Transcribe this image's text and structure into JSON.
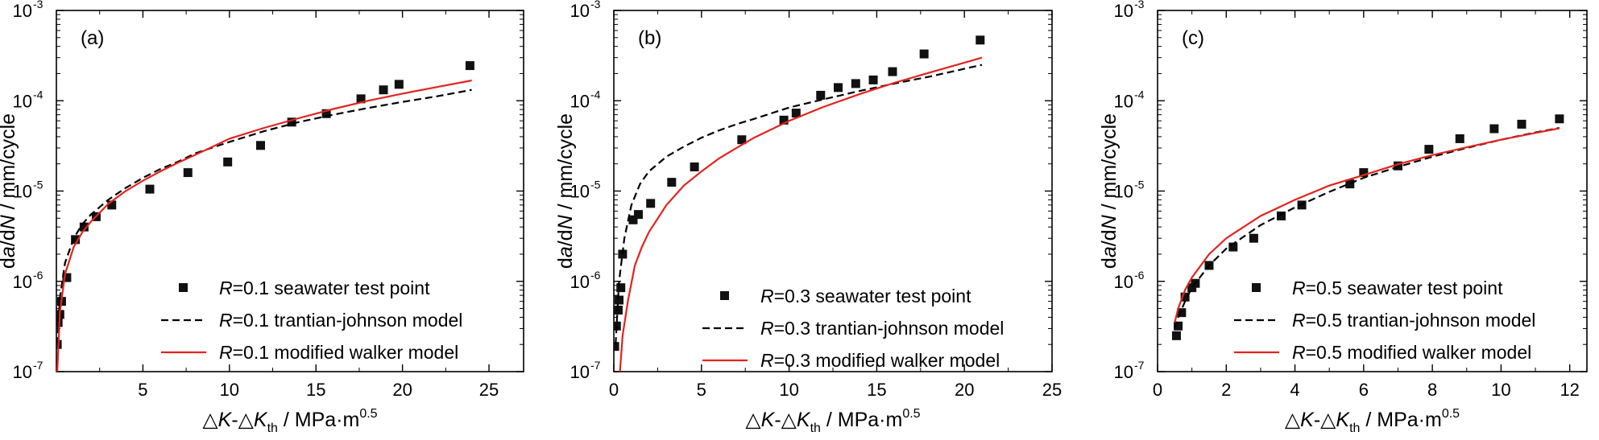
{
  "chart_data": [
    {
      "type": "scatter",
      "panel_label": "(a)",
      "xlim": [
        0,
        27
      ],
      "ylim": [
        1e-07,
        0.001
      ],
      "yscale": "log",
      "xticks": [
        "5",
        "10",
        "15",
        "20",
        "25"
      ],
      "xlabel": "△K-△Kth / MPa·m0.5",
      "ylabel": "da/dN / mm/cycle",
      "legend": [
        "R=0.1 seawater test point",
        "R=0.1 trantian-johnson model",
        "R=0.1 modified walker model"
      ],
      "series": [
        {
          "name": "R=0.1 seawater test point",
          "kind": "points",
          "color": "#111111",
          "x": [
            0.05,
            0.1,
            0.2,
            0.3,
            0.6,
            1.1,
            1.6,
            2.3,
            3.2,
            5.4,
            7.6,
            9.9,
            11.8,
            13.6,
            15.6,
            17.6,
            18.9,
            19.8,
            23.9
          ],
          "y": [
            2e-07,
            3.5e-07,
            4.3e-07,
            6e-07,
            1.1e-06,
            2.9e-06,
            4e-06,
            5.2e-06,
            7e-06,
            1.05e-05,
            1.6e-05,
            2.1e-05,
            3.2e-05,
            5.8e-05,
            7.2e-05,
            0.000105,
            0.000132,
            0.000152,
            0.000245
          ]
        },
        {
          "name": "R=0.1 trantian-johnson model",
          "kind": "dashed",
          "color": "#000000",
          "x": [
            0.05,
            0.2,
            0.5,
            1.0,
            1.5,
            2.0,
            3.0,
            4.0,
            5.0,
            6.0,
            7.0,
            8.0,
            10,
            12,
            14,
            16,
            18,
            20,
            22,
            24
          ],
          "y": [
            2e-07,
            6.5e-07,
            1.6e-06,
            3e-06,
            4.3e-06,
            5.5e-06,
            8e-06,
            1.08e-05,
            1.4e-05,
            1.75e-05,
            2.1e-05,
            2.6e-05,
            3.5e-05,
            4.6e-05,
            5.8e-05,
            7e-05,
            8.3e-05,
            9.7e-05,
            0.000112,
            0.000132
          ]
        },
        {
          "name": "R=0.1 modified walker model",
          "kind": "solid",
          "color": "#e3231e",
          "x": [
            0.05,
            0.2,
            0.5,
            1.0,
            1.5,
            2.0,
            3.0,
            4.0,
            5.0,
            6.0,
            7.0,
            8.0,
            10,
            12,
            14,
            16,
            18,
            20,
            22,
            24
          ],
          "y": [
            1e-07,
            4.5e-07,
            1.2e-06,
            2.4e-06,
            3.5e-06,
            4.6e-06,
            7.2e-06,
            1e-05,
            1.3e-05,
            1.65e-05,
            2.05e-05,
            2.5e-05,
            3.8e-05,
            5e-05,
            6.4e-05,
            8.1e-05,
            0.0001,
            0.00012,
            0.000142,
            0.000168
          ]
        }
      ]
    },
    {
      "type": "scatter",
      "panel_label": "(b)",
      "xlim": [
        0,
        25
      ],
      "ylim": [
        1e-07,
        0.001
      ],
      "yscale": "log",
      "xticks": [
        "0",
        "5",
        "10",
        "15",
        "20",
        "25"
      ],
      "xlabel": "△K-△Kth / MPa·m0.5",
      "ylabel": "da/dN / mm/cycle",
      "legend": [
        "R=0.3 seawater test point",
        "R=0.3 trantian-johnson model",
        "R=0.3 modified walker model"
      ],
      "series": [
        {
          "name": "R=0.3 seawater test point",
          "kind": "points",
          "color": "#111111",
          "x": [
            0.05,
            0.15,
            0.25,
            0.3,
            0.4,
            0.5,
            1.1,
            1.4,
            2.1,
            3.3,
            4.6,
            7.3,
            9.7,
            10.4,
            11.8,
            12.8,
            13.8,
            14.8,
            15.9,
            17.7,
            20.9
          ],
          "y": [
            1.9e-07,
            3.2e-07,
            4.8e-07,
            6.2e-07,
            8.5e-07,
            2e-06,
            4.8e-06,
            5.5e-06,
            7.3e-06,
            1.25e-05,
            1.85e-05,
            3.7e-05,
            6.1e-05,
            7.3e-05,
            0.000115,
            0.00014,
            0.000155,
            0.00017,
            0.00021,
            0.00033,
            0.00047
          ]
        },
        {
          "name": "R=0.3 trantian-johnson model",
          "kind": "dashed",
          "color": "#000000",
          "x": [
            0.1,
            0.3,
            0.6,
            1.0,
            1.5,
            2.0,
            3.0,
            4.0,
            5.0,
            6.0,
            7.0,
            8.0,
            10,
            12,
            14,
            16,
            18,
            21
          ],
          "y": [
            2e-07,
            1e-06,
            3e-06,
            7e-06,
            1.2e-05,
            1.65e-05,
            2.4e-05,
            3.1e-05,
            3.9e-05,
            4.7e-05,
            5.5e-05,
            6.3e-05,
            8.4e-05,
            0.000104,
            0.000128,
            0.000155,
            0.000185,
            0.00025
          ]
        },
        {
          "name": "R=0.3 modified walker model",
          "kind": "solid",
          "color": "#e3231e",
          "x": [
            0.35,
            0.5,
            0.8,
            1.2,
            1.6,
            2.0,
            3.0,
            4.0,
            5.0,
            6.0,
            7.0,
            8.0,
            10,
            12,
            14,
            16,
            18,
            21
          ],
          "y": [
            1e-07,
            2.5e-07,
            6e-07,
            1.5e-06,
            2.4e-06,
            3.5e-06,
            7e-06,
            1.15e-05,
            1.65e-05,
            2.3e-05,
            3e-05,
            3.9e-05,
            6e-05,
            8.6e-05,
            0.000118,
            0.000158,
            0.000205,
            0.0003
          ]
        }
      ]
    },
    {
      "type": "scatter",
      "panel_label": "(c)",
      "xlim": [
        0,
        12.5
      ],
      "ylim": [
        1e-07,
        0.001
      ],
      "yscale": "log",
      "xticks": [
        "0",
        "2",
        "4",
        "6",
        "8",
        "10",
        "12"
      ],
      "xlabel": "△K-△Kth / MPa·m0.5",
      "ylabel": "da/dN / mm/cycle",
      "legend": [
        "R=0.5 seawater test point",
        "R=0.5 trantian-johnson model",
        "R=0.5 modified walker model"
      ],
      "series": [
        {
          "name": "R=0.5 seawater test point",
          "kind": "points",
          "color": "#111111",
          "x": [
            0.55,
            0.6,
            0.7,
            0.8,
            1.0,
            1.1,
            1.5,
            2.2,
            2.8,
            3.6,
            4.2,
            5.6,
            6.0,
            7.0,
            7.9,
            8.8,
            9.8,
            10.6,
            11.7
          ],
          "y": [
            2.5e-07,
            3.2e-07,
            4.5e-07,
            6.7e-07,
            8.5e-07,
            9.5e-07,
            1.5e-06,
            2.4e-06,
            3e-06,
            5.3e-06,
            7e-06,
            1.2e-05,
            1.6e-05,
            1.9e-05,
            2.9e-05,
            3.8e-05,
            4.9e-05,
            5.5e-05,
            6.3e-05
          ]
        },
        {
          "name": "R=0.5 trantian-johnson model",
          "kind": "dashed",
          "color": "#000000",
          "x": [
            0.5,
            0.6,
            0.8,
            1.0,
            1.5,
            2.0,
            3.0,
            4.0,
            5.0,
            6.0,
            7.0,
            8.0,
            9.0,
            10.0,
            11.0,
            11.7
          ],
          "y": [
            3e-07,
            4e-07,
            6e-07,
            8.5e-07,
            1.5e-06,
            2.3e-06,
            4.2e-06,
            6.6e-06,
            9.8e-06,
            1.4e-05,
            1.85e-05,
            2.4e-05,
            3e-05,
            3.7e-05,
            4.45e-05,
            5e-05
          ]
        },
        {
          "name": "R=0.5 modified walker model",
          "kind": "solid",
          "color": "#e3231e",
          "x": [
            0.5,
            0.6,
            0.8,
            1.0,
            1.5,
            2.0,
            3.0,
            4.0,
            5.0,
            6.0,
            7.0,
            8.0,
            9.0,
            10.0,
            11.0,
            11.7
          ],
          "y": [
            3.5e-07,
            5e-07,
            8e-07,
            1.1e-06,
            2e-06,
            3e-06,
            5.3e-06,
            8e-06,
            1.15e-05,
            1.5e-05,
            1.98e-05,
            2.5e-05,
            3.05e-05,
            3.7e-05,
            4.4e-05,
            4.95e-05
          ]
        }
      ]
    }
  ]
}
